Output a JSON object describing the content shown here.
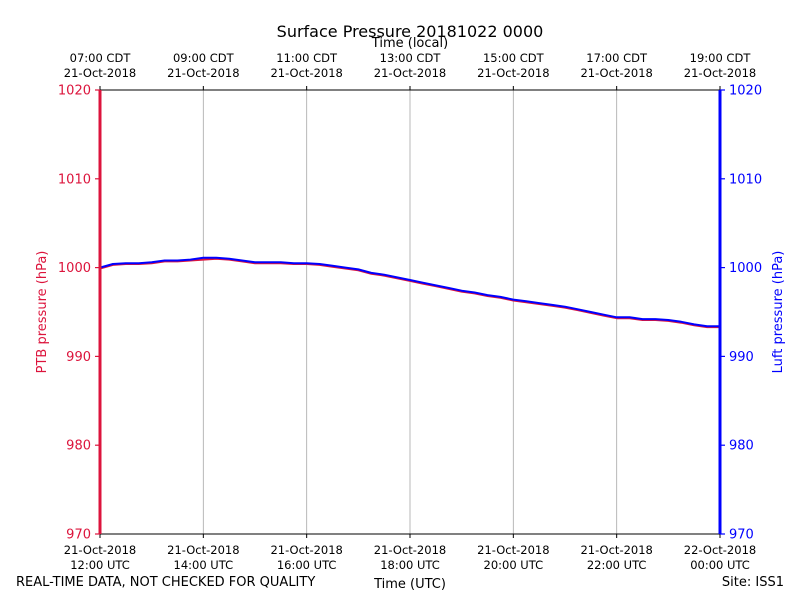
{
  "chart_data": {
    "type": "line",
    "title": "Surface Pressure 20181022 0000",
    "x_label": "Time (UTC)",
    "x2_label": "Time (local)",
    "ylabel": "PTB pressure (hPa)",
    "y2label": "Luft pressure (hPa)",
    "ylim": [
      970,
      1020
    ],
    "xlim_hours": [
      12,
      24
    ],
    "grid": "vertical",
    "y_ticks": [
      "970",
      "980",
      "990",
      "1000",
      "1010",
      "1020"
    ],
    "x_ticks": [
      {
        "h": 12,
        "line1": "21-Oct-2018",
        "line2": "12:00 UTC"
      },
      {
        "h": 14,
        "line1": "21-Oct-2018",
        "line2": "14:00 UTC"
      },
      {
        "h": 16,
        "line1": "21-Oct-2018",
        "line2": "16:00 UTC"
      },
      {
        "h": 18,
        "line1": "21-Oct-2018",
        "line2": "18:00 UTC"
      },
      {
        "h": 20,
        "line1": "21-Oct-2018",
        "line2": "20:00 UTC"
      },
      {
        "h": 22,
        "line1": "21-Oct-2018",
        "line2": "22:00 UTC"
      },
      {
        "h": 24,
        "line1": "22-Oct-2018",
        "line2": "00:00 UTC"
      }
    ],
    "x2_ticks": [
      {
        "h": 12,
        "line1": "07:00 CDT",
        "line2": "21-Oct-2018"
      },
      {
        "h": 14,
        "line1": "09:00 CDT",
        "line2": "21-Oct-2018"
      },
      {
        "h": 16,
        "line1": "11:00 CDT",
        "line2": "21-Oct-2018"
      },
      {
        "h": 18,
        "line1": "13:00 CDT",
        "line2": "21-Oct-2018"
      },
      {
        "h": 20,
        "line1": "15:00 CDT",
        "line2": "21-Oct-2018"
      },
      {
        "h": 22,
        "line1": "17:00 CDT",
        "line2": "21-Oct-2018"
      },
      {
        "h": 24,
        "line1": "19:00 CDT",
        "line2": "21-Oct-2018"
      }
    ],
    "series": [
      {
        "name": "PTB",
        "color": "#dc143c",
        "x": [
          12.0,
          12.25,
          12.5,
          12.75,
          13.0,
          13.25,
          13.5,
          13.75,
          14.0,
          14.25,
          14.5,
          14.75,
          15.0,
          15.25,
          15.5,
          15.75,
          16.0,
          16.25,
          16.5,
          16.75,
          17.0,
          17.25,
          17.5,
          17.75,
          18.0,
          18.25,
          18.5,
          18.75,
          19.0,
          19.25,
          19.5,
          19.75,
          20.0,
          20.25,
          20.5,
          20.75,
          21.0,
          21.25,
          21.5,
          21.75,
          22.0,
          22.25,
          22.5,
          22.75,
          23.0,
          23.25,
          23.5,
          23.75,
          24.0
        ],
        "y": [
          999.9,
          1000.3,
          1000.4,
          1000.4,
          1000.5,
          1000.7,
          1000.7,
          1000.8,
          1000.9,
          1001.0,
          1000.9,
          1000.7,
          1000.5,
          1000.5,
          1000.5,
          1000.4,
          1000.4,
          1000.3,
          1000.1,
          999.9,
          999.7,
          999.3,
          999.1,
          998.8,
          998.5,
          998.2,
          997.9,
          997.6,
          997.3,
          997.1,
          996.8,
          996.6,
          996.3,
          996.1,
          995.9,
          995.7,
          995.5,
          995.2,
          994.9,
          994.6,
          994.3,
          994.3,
          994.1,
          994.1,
          994.0,
          993.8,
          993.5,
          993.3,
          993.3
        ]
      },
      {
        "name": "Luft",
        "color": "#0000ff",
        "x": [
          12.0,
          12.25,
          12.5,
          12.75,
          13.0,
          13.25,
          13.5,
          13.75,
          14.0,
          14.25,
          14.5,
          14.75,
          15.0,
          15.25,
          15.5,
          15.75,
          16.0,
          16.25,
          16.5,
          16.75,
          17.0,
          17.25,
          17.5,
          17.75,
          18.0,
          18.25,
          18.5,
          18.75,
          19.0,
          19.25,
          19.5,
          19.75,
          20.0,
          20.25,
          20.5,
          20.75,
          21.0,
          21.25,
          21.5,
          21.75,
          22.0,
          22.25,
          22.5,
          22.75,
          23.0,
          23.25,
          23.5,
          23.75,
          24.0
        ],
        "y": [
          1000.0,
          1000.4,
          1000.5,
          1000.5,
          1000.6,
          1000.8,
          1000.8,
          1000.9,
          1001.1,
          1001.1,
          1001.0,
          1000.8,
          1000.6,
          1000.6,
          1000.6,
          1000.5,
          1000.5,
          1000.4,
          1000.2,
          1000.0,
          999.8,
          999.4,
          999.2,
          998.9,
          998.6,
          998.3,
          998.0,
          997.7,
          997.4,
          997.2,
          996.9,
          996.7,
          996.4,
          996.2,
          996.0,
          995.8,
          995.6,
          995.3,
          995.0,
          994.7,
          994.4,
          994.4,
          994.2,
          994.2,
          994.1,
          993.9,
          993.6,
          993.4,
          993.4
        ]
      }
    ]
  },
  "footer": {
    "left": "REAL-TIME DATA, NOT CHECKED FOR QUALITY",
    "right": "Site: ISS1"
  }
}
